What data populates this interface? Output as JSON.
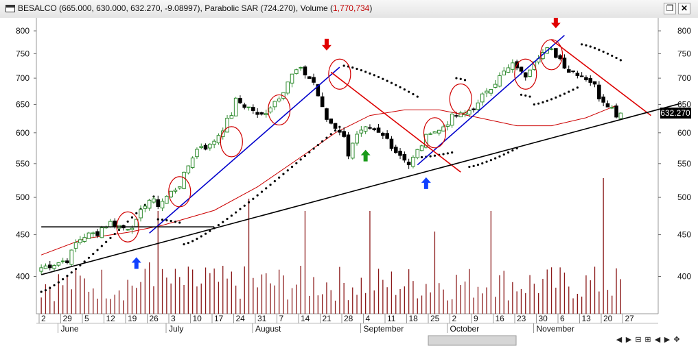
{
  "window": {
    "title_prefix": "BESALCO (665.000, 630.000, 632.270, -9.08997), Parabolic SAR (724.270), Volume (",
    "title_volume": "1,770,734",
    "title_suffix": ")",
    "restore_icon": "❐",
    "close_icon": "✕"
  },
  "navigation": [
    {
      "name": "nav-first-icon",
      "glyph": "◀"
    },
    {
      "name": "nav-zoom-in-icon",
      "glyph": "▶"
    },
    {
      "name": "nav-zoom-out-icon",
      "glyph": "⊟"
    },
    {
      "name": "nav-fit-icon",
      "glyph": "⊞"
    },
    {
      "name": "nav-scroll-left-icon",
      "glyph": "◀"
    },
    {
      "name": "nav-scroll-right-icon",
      "glyph": "▶"
    },
    {
      "name": "nav-move-icon",
      "glyph": "✥"
    }
  ],
  "chart_data": {
    "type": "line",
    "price_axis": {
      "scale": "log",
      "ticks": [
        400,
        450,
        500,
        550,
        600,
        650,
        700,
        750,
        800
      ],
      "range": [
        360,
        830
      ]
    },
    "last_price_label": "632.270",
    "x_ticks": [
      "2",
      "29",
      "5",
      "12",
      "19",
      "26",
      "3",
      "10",
      "17",
      "24",
      "31",
      "7",
      "14",
      "21",
      "28",
      "4",
      "11",
      "18",
      "25",
      "2",
      "9",
      "16",
      "23",
      "30",
      "6",
      "13",
      "20",
      "27"
    ],
    "months": [
      "June",
      "July",
      "August",
      "September",
      "October",
      "November"
    ],
    "month_tick_index": [
      1,
      6,
      10,
      15,
      19,
      23
    ],
    "bars_per_tick": 5,
    "total_bars": 135,
    "colors": {
      "up_candle": "#2e8b2e",
      "down_candle": "#000000",
      "volume": "#8b1a1a",
      "sar": "#000000",
      "moving_average": "#cc0000",
      "uptrend_line": "#0000cc",
      "downtrend_line": "#dd0000",
      "support_line": "#000000",
      "buy_arrow_blue": "#1040ff",
      "buy_arrow_green": "#1a9a1a",
      "sell_arrow": "#e00000",
      "circle": "#d00000"
    },
    "path_points": [
      [
        0,
        410
      ],
      [
        5,
        415
      ],
      [
        10,
        420
      ],
      [
        12,
        438
      ],
      [
        15,
        448
      ],
      [
        20,
        452
      ],
      [
        22,
        460
      ],
      [
        25,
        466
      ],
      [
        30,
        458
      ],
      [
        34,
        465
      ],
      [
        38,
        498
      ],
      [
        42,
        490
      ],
      [
        46,
        505
      ],
      [
        50,
        520
      ],
      [
        54,
        560
      ],
      [
        57,
        580
      ],
      [
        60,
        575
      ],
      [
        64,
        600
      ],
      [
        68,
        630
      ],
      [
        70,
        660
      ],
      [
        72,
        650
      ],
      [
        76,
        640
      ],
      [
        78,
        625
      ],
      [
        81,
        640
      ],
      [
        86,
        670
      ],
      [
        89,
        700
      ],
      [
        92,
        718
      ],
      [
        94,
        712
      ],
      [
        98,
        690
      ],
      [
        100,
        652
      ],
      [
        102,
        625
      ],
      [
        106,
        608
      ],
      [
        108,
        600
      ],
      [
        110,
        565
      ],
      [
        112,
        590
      ],
      [
        116,
        605
      ],
      [
        120,
        600
      ],
      [
        124,
        590
      ],
      [
        127,
        570
      ],
      [
        130,
        560
      ],
      [
        132,
        548
      ],
      [
        136,
        578
      ],
      [
        138,
        592
      ],
      [
        140,
        608
      ],
      [
        142,
        600
      ],
      [
        145,
        615
      ],
      [
        148,
        630
      ],
      [
        151,
        630
      ],
      [
        155,
        645
      ],
      [
        157,
        650
      ],
      [
        159,
        675
      ],
      [
        162,
        688
      ],
      [
        166,
        712
      ],
      [
        170,
        730
      ],
      [
        173,
        700
      ],
      [
        177,
        742
      ],
      [
        182,
        760
      ],
      [
        186,
        740
      ],
      [
        189,
        715
      ],
      [
        192,
        712
      ],
      [
        195,
        702
      ],
      [
        198,
        690
      ],
      [
        200,
        665
      ],
      [
        204,
        648
      ],
      [
        206,
        632
      ],
      [
        209,
        638
      ]
    ],
    "path_x_scale": 0.645,
    "sar_segments": [
      {
        "from": 0,
        "to": 27,
        "side": "below",
        "start": 383,
        "accel": 0.12
      },
      {
        "from": 27,
        "to": 33,
        "side": "above",
        "start": 470,
        "accel": 0.02
      },
      {
        "from": 33,
        "to": 70,
        "side": "below",
        "start": 438,
        "accel": 0.11
      },
      {
        "from": 70,
        "to": 88,
        "side": "above",
        "start": 725,
        "accel": 0.05
      },
      {
        "from": 88,
        "to": 96,
        "side": "below",
        "start": 560,
        "accel": 0.02
      },
      {
        "from": 96,
        "to": 99,
        "side": "above",
        "start": 700,
        "accel": 0.03
      },
      {
        "from": 99,
        "to": 111,
        "side": "below",
        "start": 545,
        "accel": 0.05
      },
      {
        "from": 111,
        "to": 114,
        "side": "above",
        "start": 668,
        "accel": 0.03
      },
      {
        "from": 114,
        "to": 125,
        "side": "below",
        "start": 650,
        "accel": 0.05
      },
      {
        "from": 125,
        "to": 135,
        "side": "above",
        "start": 770,
        "accel": 0.05
      }
    ],
    "volume_max": 1770734,
    "volume_tall_bars": [
      [
        27,
        1.0
      ],
      [
        48,
        1.12
      ],
      [
        61,
        1.0
      ],
      [
        76,
        1.0
      ],
      [
        91,
        0.8
      ],
      [
        104,
        1.0
      ],
      [
        130,
        1.32
      ],
      [
        25,
        0.5
      ],
      [
        38,
        0.45
      ]
    ],
    "moving_average": [
      [
        0,
        425
      ],
      [
        10,
        445
      ],
      [
        20,
        453
      ],
      [
        28,
        462
      ],
      [
        40,
        482
      ],
      [
        50,
        515
      ],
      [
        60,
        560
      ],
      [
        68,
        600
      ],
      [
        76,
        630
      ],
      [
        84,
        640
      ],
      [
        92,
        640
      ],
      [
        100,
        628
      ],
      [
        110,
        612
      ],
      [
        118,
        612
      ],
      [
        126,
        626
      ],
      [
        133,
        648
      ]
    ],
    "trendlines": [
      {
        "kind": "uptrend",
        "p1": [
          25,
          452
        ],
        "p2": [
          69,
          722
        ]
      },
      {
        "kind": "uptrend",
        "p1": [
          87,
          548
        ],
        "p2": [
          121,
          790
        ]
      },
      {
        "kind": "downtrend",
        "p1": [
          67,
          712
        ],
        "p2": [
          97,
          537
        ]
      },
      {
        "kind": "downtrend",
        "p1": [
          118,
          780
        ],
        "p2": [
          141,
          630
        ]
      },
      {
        "kind": "support",
        "p1": [
          0,
          402
        ],
        "p2": [
          148,
          652
        ]
      },
      {
        "kind": "resistance",
        "p1": [
          0,
          460
        ],
        "p2": [
          40,
          460
        ]
      }
    ],
    "circles": [
      [
        20,
        460
      ],
      [
        32,
        508
      ],
      [
        44,
        585
      ],
      [
        55,
        640
      ],
      [
        69,
        708
      ],
      [
        91,
        600
      ],
      [
        97,
        660
      ],
      [
        112,
        708
      ],
      [
        118,
        748
      ]
    ],
    "arrows": [
      {
        "type": "buy",
        "color": "blue",
        "bar": 22,
        "price": 415
      },
      {
        "type": "buy",
        "color": "green",
        "bar": 75,
        "price": 562
      },
      {
        "type": "buy",
        "color": "blue",
        "bar": 89,
        "price": 520
      },
      {
        "type": "sell",
        "color": "red",
        "bar": 66,
        "price": 770
      },
      {
        "type": "sell",
        "color": "red",
        "bar": 119,
        "price": 820
      }
    ]
  }
}
